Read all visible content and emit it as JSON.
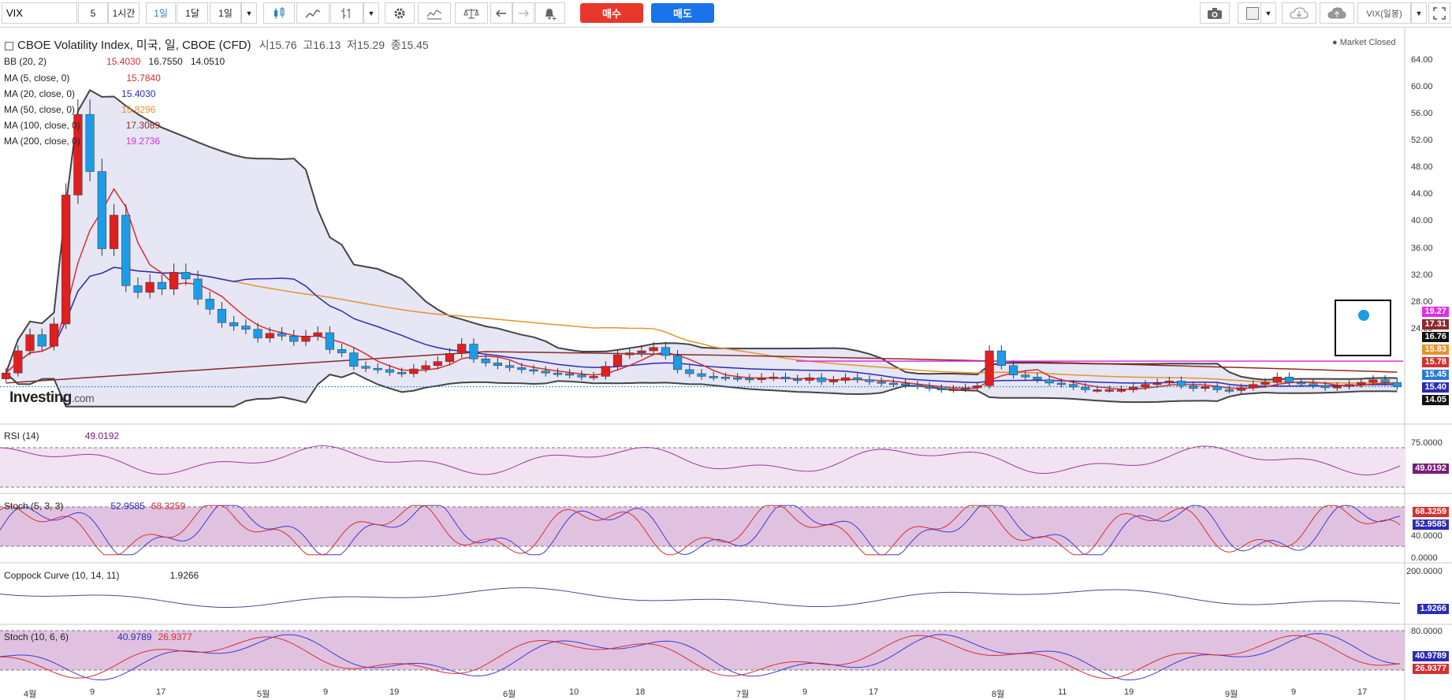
{
  "toolbar": {
    "symbol": "VIX",
    "interval_value": "5",
    "interval_1h": "1시간",
    "interval_1d": "1일",
    "interval_1m": "1달",
    "range_label": "1일",
    "buy_label": "매수",
    "sell_label": "매도",
    "symbol_right": "VIX(일봉)",
    "accent": "#2a7fd4"
  },
  "header": {
    "instrument": "CBOE Volatility Index, 미국, 일, CBOE (CFD)",
    "open_label": "시",
    "open": "15.76",
    "high_label": "고",
    "high": "16.13",
    "low_label": "저",
    "low": "15.29",
    "close_label": "종",
    "close": "15.45",
    "market_status": "Market Closed"
  },
  "indicators": {
    "bb": {
      "label": "BB (20, 2)",
      "v1": "15.4030",
      "v2": "16.7550",
      "v3": "14.0510"
    },
    "ma5": {
      "label": "MA (5, close, 0)",
      "value": "15.7840",
      "color": "#d62f2f"
    },
    "ma20": {
      "label": "MA (20, close, 0)",
      "value": "15.4030",
      "color": "#2b2bb5"
    },
    "ma50": {
      "label": "MA (50, close, 0)",
      "value": "15.8296",
      "color": "#e5932b"
    },
    "ma100": {
      "label": "MA (100, close, 0)",
      "value": "17.3089",
      "color": "#8a2a2a"
    },
    "ma200": {
      "label": "MA (200, close, 0)",
      "value": "19.2736",
      "color": "#e02fe0"
    }
  },
  "price_axis": [
    "64.00",
    "60.00",
    "56.00",
    "52.00",
    "48.00",
    "44.00",
    "40.00",
    "36.00",
    "32.00",
    "28.00",
    "24.00"
  ],
  "price_boxes": [
    {
      "text": "19.27",
      "color": "#e02fe0"
    },
    {
      "text": "17.31",
      "color": "#8a2a2a"
    },
    {
      "text": "16.76",
      "color": "#111111"
    },
    {
      "text": "15.83",
      "color": "#e5932b"
    },
    {
      "text": "15.78",
      "color": "#d62f2f"
    },
    {
      "text": "15.45",
      "color": "#2b7ad6"
    },
    {
      "text": "15.40",
      "color": "#2b2bb5"
    },
    {
      "text": "14.05",
      "color": "#111111"
    }
  ],
  "x_axis": [
    "4월",
    "9",
    "17",
    "5월",
    "9",
    "19",
    "6월",
    "10",
    "18",
    "7월",
    "9",
    "17",
    "8월",
    "11",
    "19",
    "9월",
    "9",
    "17"
  ],
  "watermark": {
    "brand": "Investing",
    "suffix": ".com"
  },
  "panes": {
    "rsi": {
      "label": "RSI (14)",
      "value": "49.0192",
      "axis_top": "75.0000",
      "box": "49.0192"
    },
    "stoch1": {
      "label": "Stoch (5, 3, 3)",
      "k": "52.9585",
      "d": "68.3259",
      "axis_mid": "40.0000",
      "axis_bot": "0.0000"
    },
    "coppock": {
      "label": "Coppock Curve (10, 14, 11)",
      "value": "1.9266",
      "axis_top": "200.0000"
    },
    "stoch2": {
      "label": "Stoch (10, 6, 6)",
      "k": "40.9789",
      "d": "26.9377",
      "axis_top": "80.0000"
    }
  },
  "chart_data": {
    "type": "candlestick",
    "title": "CBOE Volatility Index, 미국, 일, CBOE (CFD)",
    "closes": [
      17.5,
      20.8,
      23.2,
      21.5,
      24.8,
      44.0,
      56.0,
      47.5,
      36.0,
      41.0,
      30.5,
      29.5,
      31.0,
      30.0,
      32.5,
      31.5,
      28.5,
      27.0,
      25.0,
      24.5,
      24.0,
      22.7,
      23.4,
      23.0,
      22.2,
      23.0,
      23.5,
      21.0,
      20.5,
      18.5,
      18.2,
      18.0,
      17.6,
      17.4,
      18.1,
      18.6,
      19.2,
      20.4,
      21.8,
      19.6,
      19.0,
      18.6,
      18.3,
      18.0,
      17.8,
      17.5,
      17.4,
      17.2,
      16.9,
      17.0,
      18.5,
      20.2,
      20.5,
      20.8,
      21.3,
      20.1,
      18.0,
      17.4,
      17.0,
      16.9,
      16.8,
      16.7,
      16.5,
      16.8,
      16.9,
      16.6,
      16.4,
      16.8,
      16.2,
      16.4,
      16.8,
      16.5,
      16.2,
      16.0,
      15.9,
      15.7,
      15.5,
      15.2,
      15.0,
      15.1,
      15.3,
      15.6,
      20.8,
      18.6,
      17.2,
      16.9,
      16.5,
      16.0,
      15.8,
      15.4,
      15.0,
      15.0,
      15.0,
      15.0,
      15.4,
      15.8,
      16.0,
      16.3,
      15.6,
      15.2,
      15.5,
      15.0,
      14.9,
      15.3,
      15.8,
      16.1,
      16.9,
      16.1,
      15.9,
      15.6,
      15.3,
      15.5,
      15.8,
      16.1,
      16.5,
      16.1,
      15.45
    ],
    "bb_upper": 16.755,
    "bb_mid": 15.403,
    "bb_lower": 14.051,
    "y_range": [
      12,
      66
    ],
    "x_labels": [
      "4월",
      "9",
      "17",
      "5월",
      "9",
      "19",
      "6월",
      "10",
      "18",
      "7월",
      "9",
      "17",
      "8월",
      "11",
      "19",
      "9월",
      "9",
      "17"
    ]
  }
}
